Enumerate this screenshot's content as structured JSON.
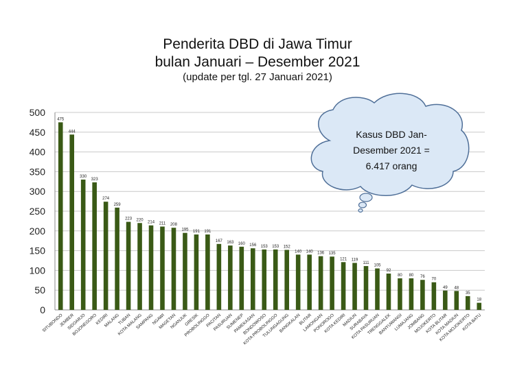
{
  "chart_data": {
    "type": "bar",
    "title": "Penderita DBD di Jawa Timur",
    "subtitle": "bulan Januari – Desember 2021",
    "note": "(update per tgl. 27 Januari 2021)",
    "xlabel": "",
    "ylabel": "",
    "ylim": [
      0,
      500
    ],
    "yticks": [
      0,
      50,
      100,
      150,
      200,
      250,
      300,
      350,
      400,
      450,
      500
    ],
    "grid": true,
    "bar_color": "#3a5a16",
    "categories": [
      "SITUBONDO",
      "JEMBER",
      "SIDOARJO",
      "BOJONEGORO",
      "KEDIRI",
      "MALANG",
      "TUBAN",
      "KOTA MALANG",
      "SAMPANG",
      "NGAWI",
      "MAGETAN",
      "NGANJUK",
      "GRESIK",
      "PROBOLINGGO",
      "PACITAN",
      "PASURUAN",
      "SUMENEP",
      "PAMEKASAN",
      "BONDOWOSO",
      "KOTA PROBOLINGGO",
      "TULUNGAGUNG",
      "BANGKALAN",
      "BLITAR",
      "LAMONGAN",
      "PONOROGO",
      "KOTA KEDIRI",
      "MADIUN",
      "SURABAYA",
      "KOTA PASURUAN",
      "TRENGGALEK",
      "BANYUWANGI",
      "LUMAJANG",
      "JOMBANG",
      "MOJOKERTO",
      "KOTA BLITAR",
      "KOTA MADIUN",
      "KOTA MOJOKERTO",
      "KOTA BATU"
    ],
    "values": [
      475,
      444,
      330,
      323,
      274,
      259,
      223,
      220,
      214,
      211,
      208,
      195,
      191,
      191,
      167,
      163,
      160,
      156,
      153,
      153,
      152,
      140,
      140,
      136,
      135,
      121,
      119,
      111,
      105,
      92,
      80,
      80,
      76,
      70,
      49,
      48,
      35,
      18
    ]
  },
  "callout": {
    "lines": [
      "Kasus DBD Jan-",
      "Desember 2021 =",
      "6.417 orang"
    ],
    "fill": "#dbe8f6",
    "stroke": "#4f6f98"
  }
}
